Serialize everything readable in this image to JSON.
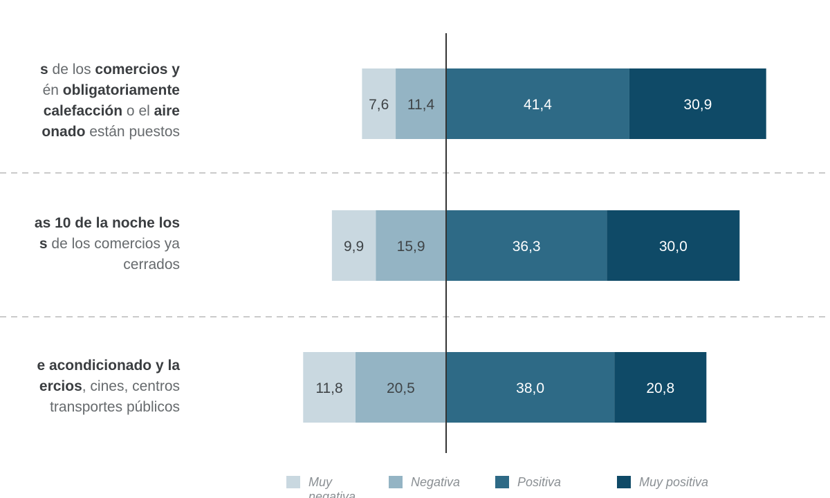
{
  "chart_data": {
    "type": "bar",
    "orientation": "horizontal",
    "stacked": true,
    "diverging": true,
    "categories": [
      [
        "s de los comercios y",
        "én obligatoriamente",
        "calefacción o el aire",
        "onado están puestos"
      ],
      [
        "as 10 de la noche los",
        "s de los comercios ya",
        "cerrados"
      ],
      [
        "e acondicionado y la",
        "ercios, cines, centros",
        "transportes públicos"
      ]
    ],
    "series": [
      {
        "name": "Muy negativa",
        "values": [
          7.6,
          9.9,
          11.8
        ],
        "labels": [
          "7,6",
          "9,9",
          "11,8"
        ],
        "color": "#c9d8e0"
      },
      {
        "name": "Negativa",
        "values": [
          11.4,
          15.9,
          20.5
        ],
        "labels": [
          "11,4",
          "15,9",
          "20,5"
        ],
        "color": "#94b4c4"
      },
      {
        "name": "Positiva",
        "values": [
          41.4,
          36.3,
          38.0
        ],
        "labels": [
          "41,4",
          "36,3",
          "38,0"
        ],
        "color": "#2e6a86"
      },
      {
        "name": "Muy positiva",
        "values": [
          30.9,
          30.0,
          20.8
        ],
        "labels": [
          "30,9",
          "30,0",
          "20,8"
        ],
        "color": "#0f4a67"
      }
    ],
    "legend": {
      "position": "bottom",
      "items": [
        "Muy negativa",
        "Negativa",
        "Positiva",
        "Muy positiva"
      ]
    },
    "grid": false
  }
}
